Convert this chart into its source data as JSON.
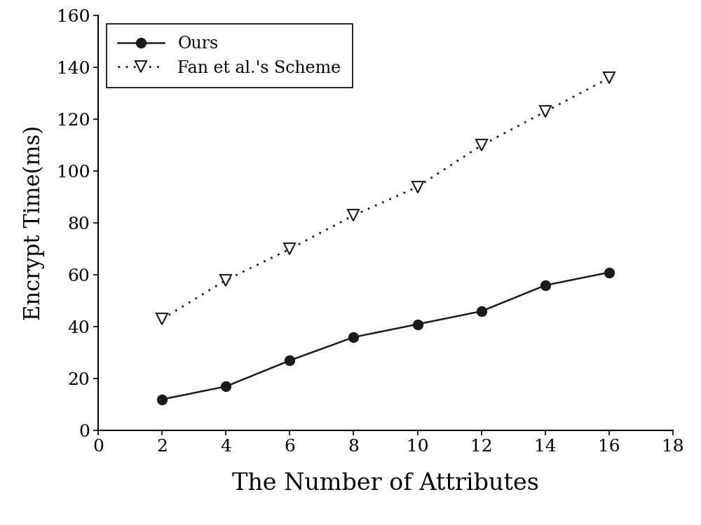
{
  "x": [
    2,
    4,
    6,
    8,
    10,
    12,
    14,
    16
  ],
  "ours_y": [
    12,
    17,
    27,
    36,
    41,
    46,
    56,
    61
  ],
  "fan_y": [
    43,
    58,
    70,
    83,
    94,
    110,
    123,
    136
  ],
  "xlabel": "The Number of Attributes",
  "ylabel": "Encrypt Time(ms)",
  "xlim": [
    0,
    18
  ],
  "ylim": [
    0,
    160
  ],
  "xticks": [
    0,
    2,
    4,
    6,
    8,
    10,
    12,
    14,
    16,
    18
  ],
  "yticks": [
    0,
    20,
    40,
    60,
    80,
    100,
    120,
    140,
    160
  ],
  "legend_ours": "Ours",
  "legend_fan": "Fan et al.'s Scheme",
  "line_color": "#1a1a1a",
  "background_color": "#ffffff",
  "figsize": [
    10.0,
    7.49
  ],
  "dpi": 100
}
